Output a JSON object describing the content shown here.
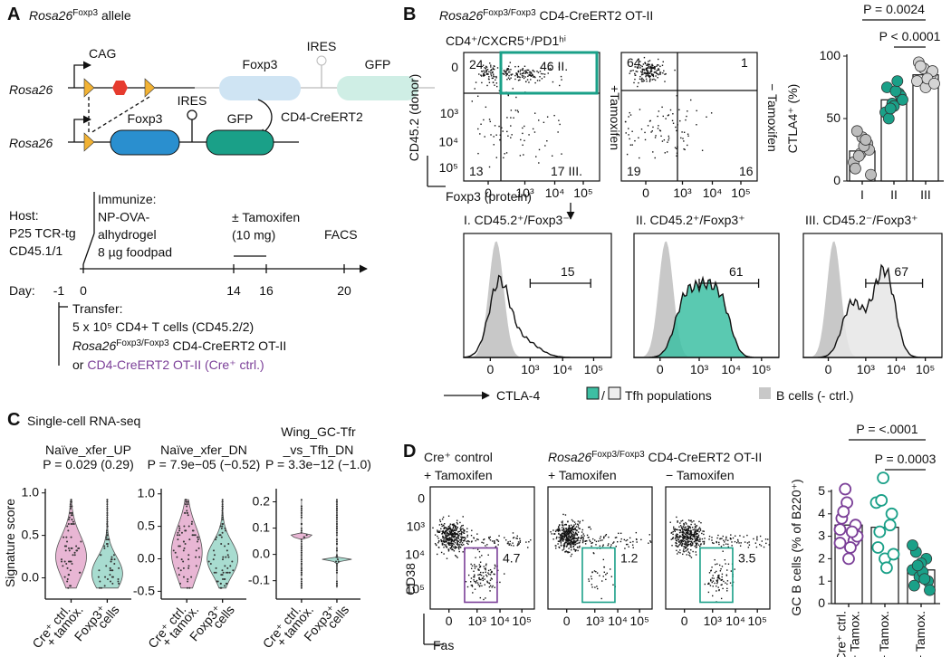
{
  "figure": {
    "a": {
      "letter": "A",
      "title": [
        "Rosa26",
        "Foxp3",
        " allele"
      ],
      "rosa_top": "Rosa26",
      "cag": "CAG",
      "grey": [
        "Foxp3",
        "IRES",
        "GFP"
      ],
      "cre": "CD4-CreERT2",
      "rosa_bottom": "Rosa26",
      "ires": "IRES",
      "foxp3": "Foxp3",
      "gfp": "GFP",
      "host": [
        "Host:",
        "P25 TCR-tg",
        "CD45.1/1"
      ],
      "immunize": [
        "Immunize:",
        "NP-OVA-",
        "alhydrogel",
        "8 µg foodpad"
      ],
      "tamoxifen": [
        "± Tamoxifen",
        "(10 mg)"
      ],
      "facs": "FACS",
      "day": "Day:",
      "days": [
        "-1",
        "0",
        "14",
        "16",
        "20"
      ],
      "transfer_title": "Transfer:",
      "transfer_cells": "5 x 10⁵ CD4+ T cells (CD45.2/2)",
      "transfer_teal": [
        "Rosa26",
        "Foxp3/Foxp3",
        " CD4-CreERT2 OT-II"
      ],
      "transfer_or": "or ",
      "transfer_purple": "CD4-CreERT2 OT-II (Cre⁺ ctrl.)"
    },
    "b": {
      "letter": "B",
      "header": [
        "Rosa26",
        "Foxp3/Foxp3",
        " CD4-CreERT2 OT-II"
      ],
      "gate": "CD4⁺/CXCR5⁺/PD1ʰⁱ",
      "y_axis": "CD45.2 (donor)",
      "x_axis": "Foxp3 (protein)",
      "flow_ticks": [
        "0",
        "10³",
        "10⁴",
        "10⁵"
      ],
      "plots": [
        {
          "quadrants": [
            "24",
            "46 II.",
            "13",
            "17 III."
          ],
          "condition": "+Tamoxifen"
        },
        {
          "quadrants": [
            "64",
            "1",
            "19",
            "16"
          ],
          "condition": "− Tamoxifen"
        }
      ],
      "histograms": [
        {
          "title": "I. CD45.2⁺/Foxp3⁻",
          "gate": "15"
        },
        {
          "title": "II. CD45.2⁺/Foxp3⁺",
          "gate": "61"
        },
        {
          "title": "III. CD45.2⁻/Foxp3⁺",
          "gate": "67"
        }
      ],
      "hist_axis": "CTLA-4",
      "legend_slash": "/",
      "legend_tfh": "Tfh populations",
      "legend_b": "B cells (- ctrl.)"
    },
    "c": {
      "letter": "C",
      "title": "Single-cell RNA-seq",
      "y_label": "Signature score",
      "x_labels": [
        [
          "Cre⁺ ctrl.",
          "+ tamox."
        ],
        [
          "Foxp3⁺",
          "cells"
        ]
      ],
      "plots": [
        {
          "title": [
            "Naïve_xfer_UP"
          ],
          "stat": "P = 0.029 (0.29)",
          "ylim": [
            -0.25,
            1.05
          ],
          "yticks": [
            {
              "value": 0,
              "label": "0.0"
            },
            0.5,
            {
              "value": 1,
              "label": "1.0"
            }
          ]
        },
        {
          "title": [
            "Naïve_xfer_DN"
          ],
          "stat": "P = 7.9e−05 (−0.52)",
          "ylim": [
            -0.62,
            1.08
          ],
          "yticks": [
            -0.5,
            {
              "value": 0,
              "label": "0.0"
            },
            0.5,
            {
              "value": 1,
              "label": "1.0"
            }
          ]
        },
        {
          "title": [
            "Wing_GC-Tfr",
            "_vs_Tfh_DN"
          ],
          "stat": "P = 3.3e−12 (−1.0)",
          "ylim": [
            -0.17,
            0.25
          ],
          "yticks": [
            -0.1,
            {
              "value": 0,
              "label": "0.0"
            },
            0.1,
            0.2
          ]
        }
      ]
    },
    "d": {
      "letter": "D",
      "cre_control": "Cre⁺ control",
      "header": [
        "Rosa26",
        "Foxp3/Foxp3",
        " CD4-CreERT2 OT-II"
      ],
      "plots": [
        {
          "condition": "+ Tamoxifen",
          "gate": "4.7"
        },
        {
          "condition": "+ Tamoxifen",
          "gate": "1.2"
        },
        {
          "condition": "− Tamoxifen",
          "gate": "3.5"
        }
      ],
      "y_axis": "CD38",
      "x_axis": "Fas"
    }
  },
  "chart_data": [
    {
      "type": "bar",
      "y_label": "CTLA4⁺ (%)",
      "categories": [
        [
          "I"
        ],
        [
          "II"
        ],
        [
          "III"
        ]
      ],
      "values": [
        24,
        65,
        85
      ],
      "points": [
        [
          15,
          22,
          30,
          10,
          35,
          25,
          40,
          28,
          5,
          20,
          33
        ],
        [
          55,
          62,
          70,
          75,
          60,
          68,
          50,
          72,
          65,
          58,
          80
        ],
        [
          80,
          90,
          85,
          95,
          75,
          88,
          92,
          82,
          78
        ]
      ],
      "colors": [
        "#bdbdbd",
        "#1aa088",
        "#d4d4d4"
      ],
      "point_fill": [
        true,
        true,
        true
      ],
      "ylim": [
        0,
        100
      ],
      "yticks": [
        0,
        50,
        100
      ],
      "comparisons": [
        "P = 0.0024",
        "P < 0.0001"
      ]
    },
    {
      "type": "bar",
      "y_label": "GC B cells (% of B220⁺)",
      "categories": [
        [
          "Cre⁺ ctrl.",
          "+ Tamox."
        ],
        [
          "− Tamox."
        ],
        [
          "+ Tamox."
        ]
      ],
      "values": [
        3.5,
        3.4,
        1.5
      ],
      "points": [
        [
          3.3,
          4.5,
          2.8,
          3.8,
          2.0,
          3.5,
          4.1,
          2.5,
          3.0,
          5.1,
          3.2,
          2.7
        ],
        [
          4.5,
          5.6,
          3.5,
          2.5,
          2.0,
          4.0,
          3.2,
          1.6,
          2.2,
          4.6
        ],
        [
          1.5,
          1.2,
          2.0,
          0.8,
          1.8,
          1.0,
          2.3,
          1.4,
          0.6,
          1.7,
          1.1,
          2.6
        ]
      ],
      "colors": [
        "#7b3f98",
        "#1aa088",
        "#1aa088"
      ],
      "point_fill": [
        false,
        false,
        true
      ],
      "ylim": [
        0,
        5
      ],
      "yticks": [
        0,
        1,
        2,
        3,
        4,
        5
      ],
      "comparisons": [
        "P = <.0001",
        "P = 0.0003"
      ]
    }
  ]
}
